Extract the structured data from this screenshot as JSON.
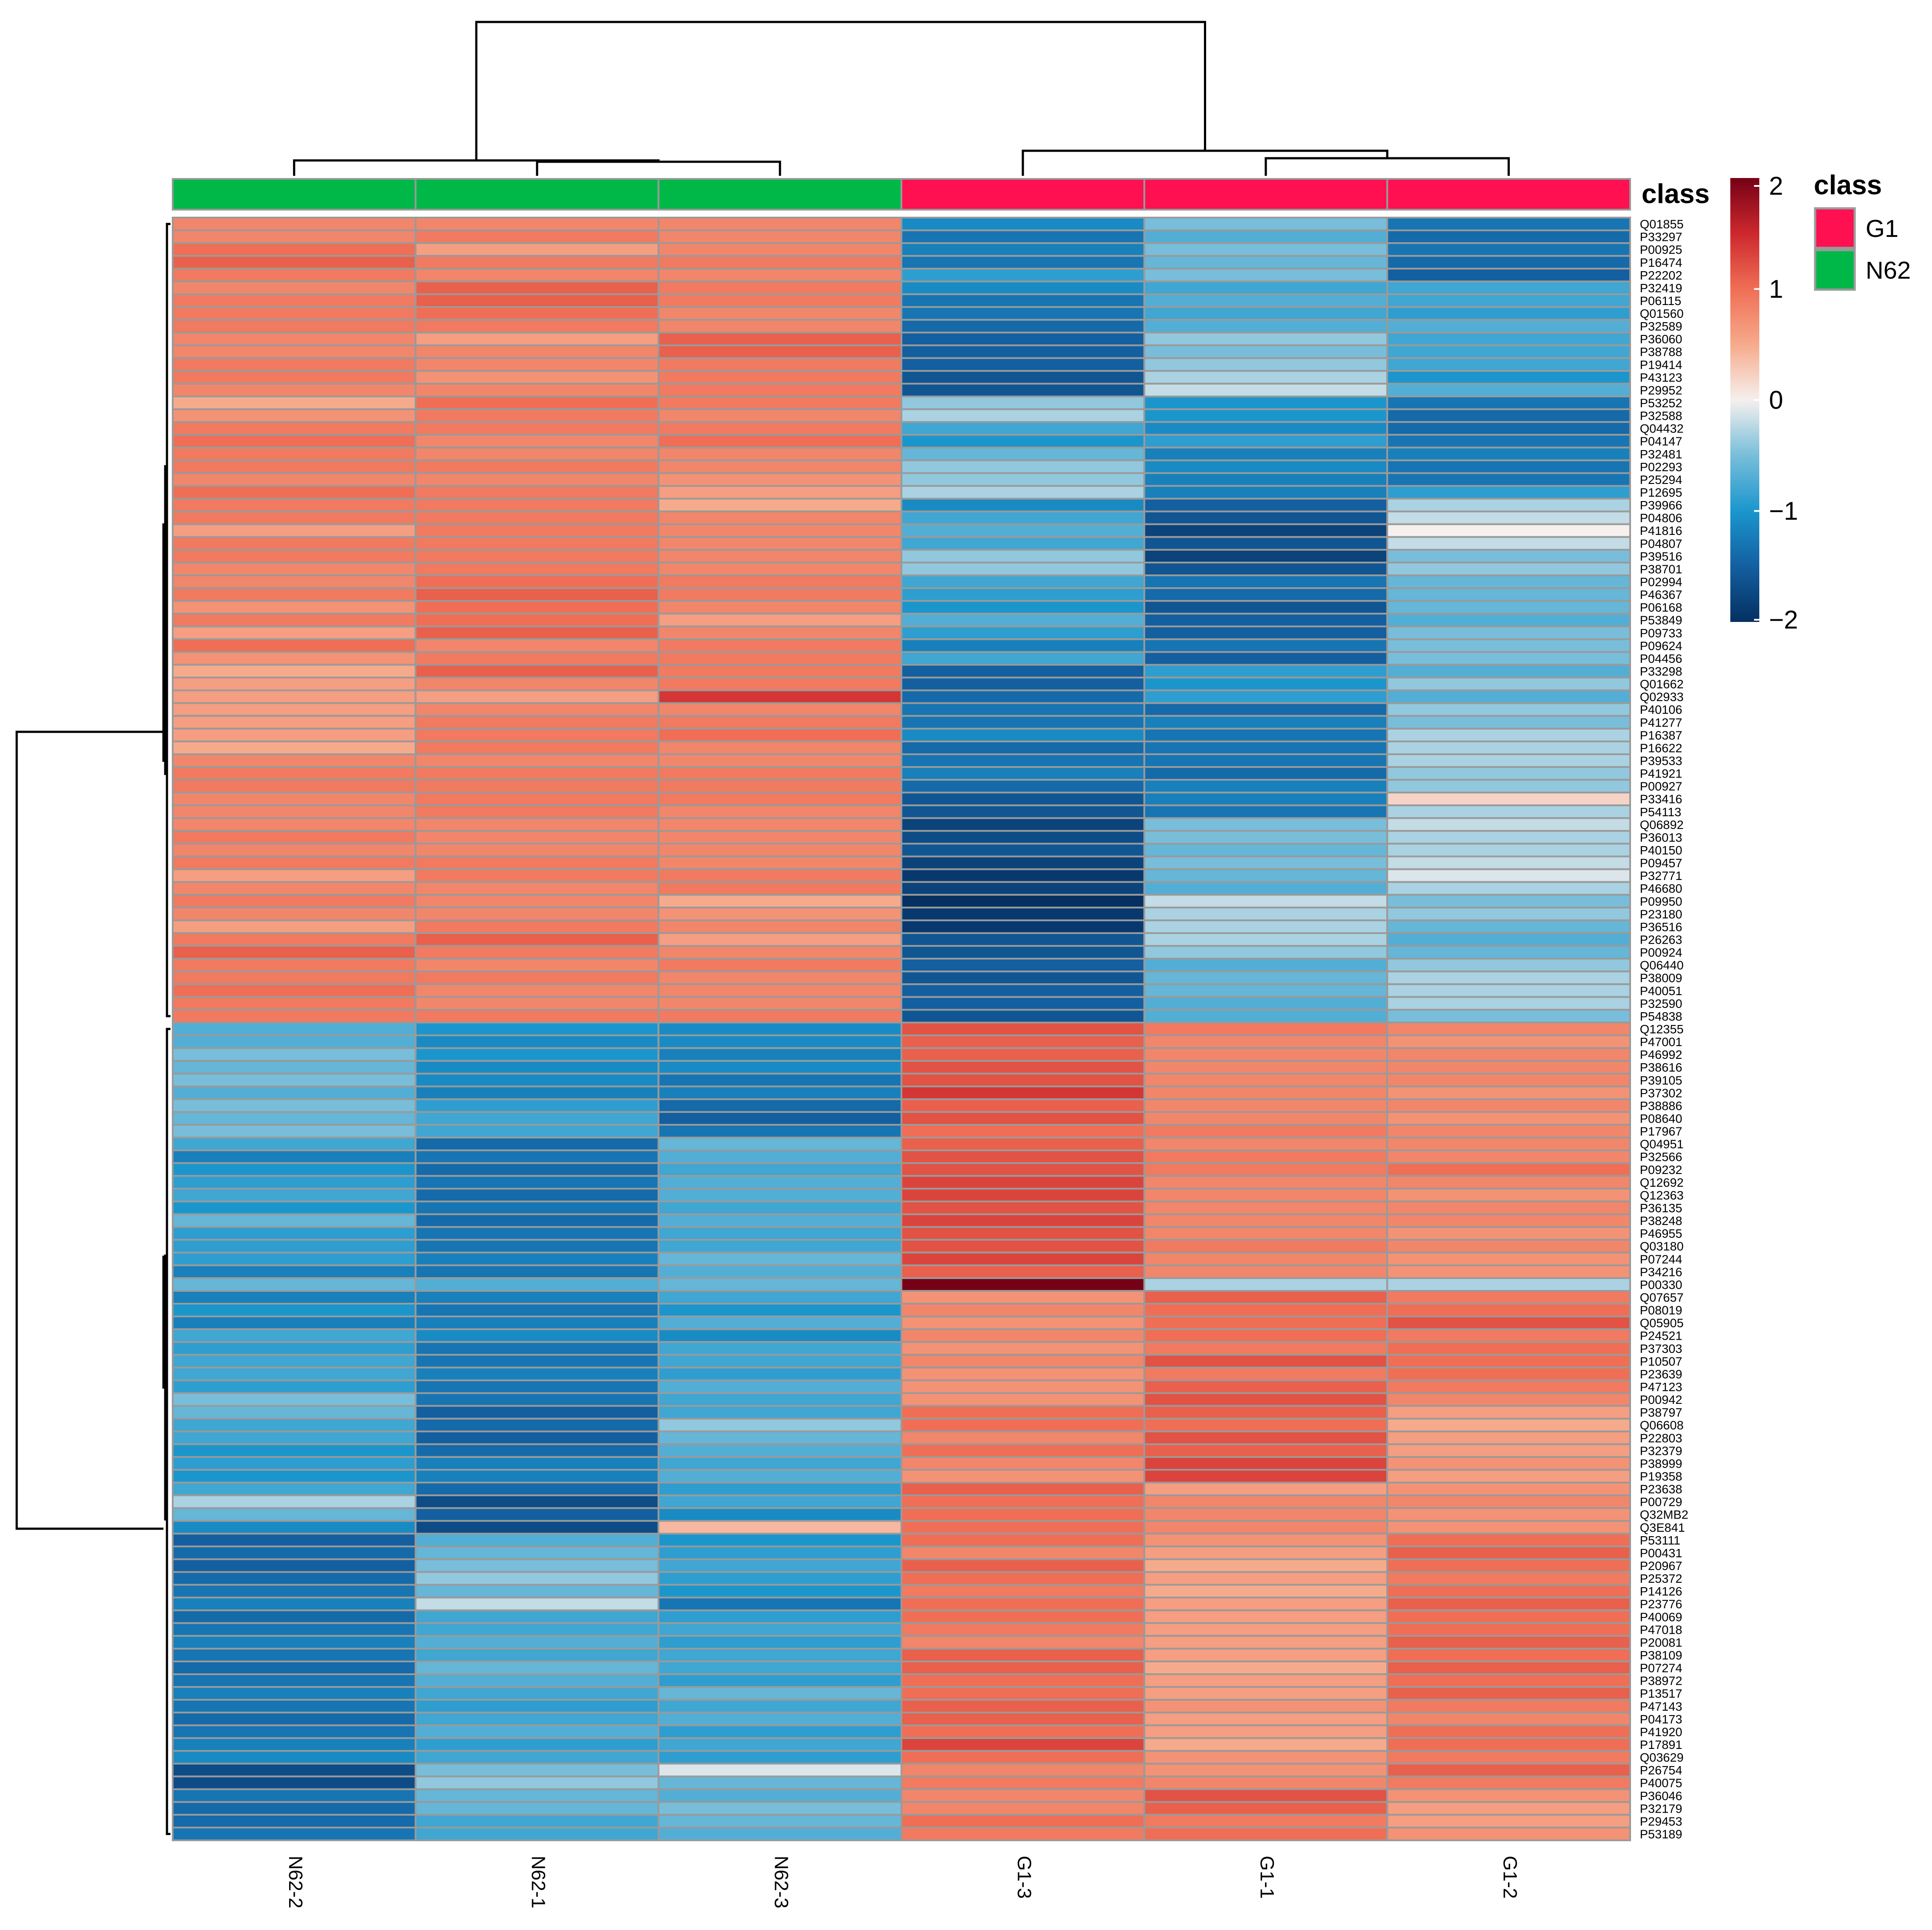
{
  "chart_data": {
    "type": "heatmap",
    "title": "",
    "columns": [
      "N62-2",
      "N62-1",
      "N62-3",
      "G1-3",
      "G1-1",
      "G1-2"
    ],
    "column_classes": [
      "N62",
      "N62",
      "N62",
      "G1",
      "G1",
      "G1"
    ],
    "annotation_label": "class",
    "legend": {
      "title": "class",
      "entries": [
        {
          "label": "G1",
          "color": "#ff1050"
        },
        {
          "label": "N62",
          "color": "#00b847"
        }
      ]
    },
    "colorbar": {
      "ticks": [
        "2",
        "1",
        "0",
        "−1",
        "−2"
      ],
      "range": [
        -2,
        2
      ]
    },
    "rows": [
      "Q01855",
      "P33297",
      "P00925",
      "P16474",
      "P22202",
      "P32419",
      "P06115",
      "Q01560",
      "P32589",
      "P36060",
      "P38788",
      "P19414",
      "P43123",
      "P29952",
      "P53252",
      "P32588",
      "Q04432",
      "P04147",
      "P32481",
      "P02293",
      "P25294",
      "P12695",
      "P39966",
      "P04806",
      "P41816",
      "P04807",
      "P39516",
      "P38701",
      "P02994",
      "P46367",
      "P06168",
      "P53849",
      "P09733",
      "P09624",
      "P04456",
      "P33298",
      "Q01662",
      "Q02933",
      "P40106",
      "P41277",
      "P16387",
      "P16622",
      "P39533",
      "P41921",
      "P00927",
      "P33416",
      "P54113",
      "Q06892",
      "P36013",
      "P40150",
      "P09457",
      "P32771",
      "P46680",
      "P09950",
      "P23180",
      "P36516",
      "P26263",
      "P00924",
      "Q06440",
      "P38009",
      "P40051",
      "P32590",
      "P54838",
      "Q12355",
      "P47001",
      "P46992",
      "P38616",
      "P39105",
      "P37302",
      "P38886",
      "P08640",
      "P17967",
      "Q04951",
      "P32566",
      "P09232",
      "Q12692",
      "Q12363",
      "P36135",
      "P38248",
      "P46955",
      "Q03180",
      "P07244",
      "P34216",
      "P00330",
      "Q07657",
      "P08019",
      "Q05905",
      "P24521",
      "P37303",
      "P10507",
      "P23639",
      "P47123",
      "P00942",
      "P38797",
      "Q06608",
      "P22803",
      "P32379",
      "P38999",
      "P19358",
      "P23638",
      "P00729",
      "Q32MB2",
      "Q3E841",
      "P53111",
      "P00431",
      "P20967",
      "P25372",
      "P14126",
      "P23776",
      "P40069",
      "P47018",
      "P20081",
      "P38109",
      "P07274",
      "P38972",
      "P13517",
      "P47143",
      "P04173",
      "P41920",
      "P17891",
      "Q03629",
      "P26754",
      "P40075",
      "P36046",
      "P32179",
      "P29453",
      "P53189"
    ],
    "values": [
      [
        0.8,
        0.8,
        0.8,
        -1.1,
        -0.5,
        -1.3
      ],
      [
        0.8,
        0.9,
        0.8,
        -1.3,
        -0.7,
        -1.4
      ],
      [
        1.0,
        0.6,
        0.8,
        -1.2,
        -0.5,
        -1.3
      ],
      [
        1.1,
        0.9,
        0.9,
        -1.3,
        -0.6,
        -1.4
      ],
      [
        0.9,
        0.8,
        0.8,
        -0.9,
        -0.5,
        -1.5
      ],
      [
        0.8,
        1.1,
        0.9,
        -1.1,
        -0.8,
        -0.8
      ],
      [
        0.9,
        1.1,
        0.9,
        -1.3,
        -0.7,
        -0.8
      ],
      [
        0.9,
        1.0,
        0.8,
        -1.3,
        -0.8,
        -0.9
      ],
      [
        0.9,
        0.9,
        0.8,
        -1.4,
        -0.7,
        -0.7
      ],
      [
        0.8,
        0.6,
        1.1,
        -1.5,
        -0.4,
        -0.8
      ],
      [
        0.8,
        0.8,
        1.1,
        -1.5,
        -0.5,
        -0.8
      ],
      [
        0.9,
        0.8,
        0.9,
        -1.5,
        -0.4,
        -0.8
      ],
      [
        0.9,
        0.7,
        0.9,
        -1.6,
        -0.3,
        -1.0
      ],
      [
        0.8,
        0.8,
        0.9,
        -1.6,
        -0.2,
        -0.7
      ],
      [
        0.5,
        1.0,
        0.9,
        -0.4,
        -1.0,
        -1.3
      ],
      [
        0.7,
        0.9,
        0.8,
        -0.3,
        -1.0,
        -1.4
      ],
      [
        0.9,
        0.9,
        0.9,
        -0.8,
        -1.1,
        -1.4
      ],
      [
        1.0,
        0.8,
        1.0,
        -1.0,
        -0.9,
        -1.3
      ],
      [
        0.9,
        0.8,
        0.8,
        -0.6,
        -1.2,
        -1.2
      ],
      [
        0.9,
        0.9,
        0.8,
        -0.4,
        -1.1,
        -1.3
      ],
      [
        0.8,
        0.8,
        0.7,
        -0.4,
        -1.2,
        -1.3
      ],
      [
        1.0,
        0.9,
        0.6,
        -0.3,
        -1.2,
        -0.9
      ],
      [
        0.9,
        0.9,
        0.5,
        -1.1,
        -1.5,
        -0.3
      ],
      [
        0.9,
        0.9,
        0.8,
        -0.8,
        -1.6,
        -0.2
      ],
      [
        0.6,
        0.9,
        0.8,
        -0.7,
        -1.8,
        0.0
      ],
      [
        0.9,
        0.9,
        0.8,
        -0.8,
        -1.6,
        -0.2
      ],
      [
        0.9,
        0.9,
        0.8,
        -0.4,
        -1.8,
        -0.5
      ],
      [
        0.8,
        0.9,
        0.8,
        -0.4,
        -1.6,
        -0.4
      ],
      [
        0.8,
        1.0,
        0.9,
        -0.8,
        -1.3,
        -0.6
      ],
      [
        0.9,
        1.1,
        0.9,
        -0.9,
        -1.4,
        -0.6
      ],
      [
        0.7,
        1.0,
        0.8,
        -1.0,
        -1.6,
        -0.6
      ],
      [
        0.9,
        1.0,
        0.6,
        -0.7,
        -1.5,
        -0.7
      ],
      [
        0.6,
        1.1,
        0.8,
        -0.9,
        -1.5,
        -0.5
      ],
      [
        1.0,
        0.8,
        0.9,
        -1.2,
        -1.3,
        -0.5
      ],
      [
        0.7,
        0.9,
        0.9,
        -0.8,
        -1.5,
        -0.5
      ],
      [
        0.5,
        1.1,
        0.9,
        -1.5,
        -0.9,
        -0.7
      ],
      [
        0.6,
        0.8,
        0.9,
        -1.5,
        -1.0,
        -0.4
      ],
      [
        0.6,
        0.6,
        1.4,
        -1.4,
        -0.9,
        -0.7
      ],
      [
        0.6,
        0.8,
        0.8,
        -1.3,
        -1.4,
        -0.4
      ],
      [
        0.6,
        0.9,
        0.9,
        -1.3,
        -1.2,
        -0.5
      ],
      [
        0.6,
        0.9,
        1.0,
        -1.1,
        -1.3,
        -0.3
      ],
      [
        0.5,
        0.9,
        0.8,
        -1.4,
        -1.3,
        -0.3
      ],
      [
        0.8,
        0.8,
        0.8,
        -1.3,
        -1.3,
        -0.3
      ],
      [
        0.9,
        0.9,
        0.9,
        -1.2,
        -1.4,
        -0.4
      ],
      [
        0.9,
        0.9,
        0.9,
        -1.4,
        -1.2,
        -0.4
      ],
      [
        0.8,
        0.9,
        0.9,
        -1.6,
        -1.2,
        0.2
      ],
      [
        0.8,
        0.9,
        0.8,
        -1.6,
        -1.3,
        -0.3
      ],
      [
        0.8,
        0.8,
        0.8,
        -1.8,
        -0.5,
        -0.2
      ],
      [
        0.9,
        0.8,
        0.8,
        -1.7,
        -0.5,
        -0.3
      ],
      [
        0.8,
        0.8,
        0.8,
        -1.6,
        -0.6,
        -0.3
      ],
      [
        0.9,
        0.9,
        0.8,
        -1.8,
        -0.5,
        -0.2
      ],
      [
        0.6,
        0.9,
        0.9,
        -1.9,
        -0.6,
        -0.1
      ],
      [
        0.8,
        0.8,
        0.9,
        -1.8,
        -0.7,
        -0.3
      ],
      [
        0.9,
        0.8,
        0.5,
        -2.0,
        -0.2,
        -0.5
      ],
      [
        0.8,
        0.8,
        0.7,
        -1.9,
        -0.3,
        -0.4
      ],
      [
        0.6,
        0.9,
        0.8,
        -1.9,
        -0.3,
        -0.6
      ],
      [
        0.9,
        1.1,
        0.6,
        -1.6,
        -0.3,
        -0.7
      ],
      [
        1.1,
        0.9,
        0.8,
        -1.6,
        -0.4,
        -0.6
      ],
      [
        0.9,
        0.8,
        0.9,
        -1.5,
        -0.7,
        -0.4
      ],
      [
        0.9,
        0.9,
        0.8,
        -1.6,
        -0.6,
        -0.3
      ],
      [
        1.0,
        0.8,
        0.8,
        -1.5,
        -0.6,
        -0.3
      ],
      [
        0.9,
        0.8,
        0.8,
        -1.5,
        -0.7,
        -0.3
      ],
      [
        0.9,
        0.9,
        0.9,
        -1.6,
        -0.7,
        -0.5
      ],
      [
        -0.7,
        -1.0,
        -1.1,
        1.2,
        0.9,
        0.8
      ],
      [
        -0.7,
        -1.1,
        -1.1,
        1.1,
        0.8,
        0.7
      ],
      [
        -0.5,
        -1.0,
        -1.2,
        1.1,
        0.8,
        0.8
      ],
      [
        -0.6,
        -1.1,
        -1.1,
        1.2,
        0.8,
        0.8
      ],
      [
        -0.5,
        -1.1,
        -1.3,
        1.2,
        0.8,
        0.8
      ],
      [
        -0.7,
        -1.2,
        -1.2,
        1.4,
        0.8,
        0.7
      ],
      [
        -0.5,
        -0.9,
        -1.4,
        1.1,
        0.8,
        0.8
      ],
      [
        -0.6,
        -0.8,
        -1.5,
        1.2,
        0.8,
        0.7
      ],
      [
        -0.5,
        -0.8,
        -1.3,
        1.0,
        0.9,
        0.8
      ],
      [
        -0.8,
        -1.4,
        -0.6,
        1.1,
        0.8,
        0.8
      ],
      [
        -1.2,
        -1.3,
        -0.7,
        1.2,
        0.9,
        0.8
      ],
      [
        -1.0,
        -1.4,
        -0.8,
        1.2,
        0.9,
        1.0
      ],
      [
        -0.9,
        -1.3,
        -0.7,
        1.3,
        0.8,
        0.8
      ],
      [
        -0.8,
        -1.4,
        -0.7,
        1.3,
        0.8,
        0.7
      ],
      [
        -1.0,
        -1.3,
        -0.8,
        1.2,
        0.8,
        0.8
      ],
      [
        -0.6,
        -1.4,
        -0.7,
        1.3,
        0.8,
        0.8
      ],
      [
        -0.9,
        -1.3,
        -0.8,
        1.2,
        0.8,
        0.7
      ],
      [
        -0.9,
        -1.3,
        -0.8,
        1.2,
        0.9,
        0.8
      ],
      [
        -0.9,
        -1.2,
        -0.6,
        1.3,
        0.8,
        0.7
      ],
      [
        -1.2,
        -1.3,
        -0.7,
        1.1,
        0.8,
        0.7
      ],
      [
        -0.6,
        -0.7,
        -0.6,
        2.0,
        -0.3,
        -0.3
      ],
      [
        -1.2,
        -1.2,
        -0.8,
        0.7,
        1.1,
        0.9
      ],
      [
        -1.0,
        -1.3,
        -1.0,
        0.8,
        1.0,
        1.0
      ],
      [
        -1.2,
        -1.2,
        -0.7,
        0.7,
        1.0,
        1.2
      ],
      [
        -0.8,
        -1.1,
        -1.1,
        0.8,
        1.0,
        0.9
      ],
      [
        -0.9,
        -1.3,
        -0.8,
        0.7,
        0.9,
        1.0
      ],
      [
        -0.8,
        -1.3,
        -0.8,
        0.8,
        1.2,
        1.0
      ],
      [
        -0.8,
        -1.2,
        -0.9,
        0.7,
        0.9,
        1.0
      ],
      [
        -0.9,
        -1.3,
        -0.7,
        0.7,
        1.1,
        0.9
      ],
      [
        -0.5,
        -1.3,
        -0.8,
        0.7,
        1.2,
        0.8
      ],
      [
        -0.6,
        -1.5,
        -0.8,
        1.0,
        1.1,
        0.6
      ],
      [
        -0.8,
        -1.4,
        -0.4,
        1.0,
        1.0,
        0.5
      ],
      [
        -0.8,
        -1.5,
        -0.6,
        0.8,
        1.2,
        0.6
      ],
      [
        -1.0,
        -1.4,
        -0.7,
        1.0,
        1.1,
        0.6
      ],
      [
        -0.9,
        -1.2,
        -0.8,
        0.8,
        1.3,
        0.7
      ],
      [
        -1.0,
        -1.2,
        -0.7,
        0.7,
        1.3,
        0.6
      ],
      [
        -0.8,
        -1.4,
        -0.9,
        1.1,
        0.6,
        0.7
      ],
      [
        -0.3,
        -1.7,
        -0.8,
        1.0,
        0.8,
        0.8
      ],
      [
        -0.6,
        -1.5,
        -1.1,
        1.0,
        0.8,
        0.7
      ],
      [
        -1.1,
        -1.7,
        0.4,
        1.0,
        0.8,
        0.7
      ],
      [
        -1.5,
        -0.7,
        -1.0,
        1.0,
        0.7,
        1.0
      ],
      [
        -1.4,
        -0.6,
        -0.9,
        0.8,
        0.6,
        1.1
      ],
      [
        -1.5,
        -0.5,
        -0.8,
        1.1,
        0.5,
        1.0
      ],
      [
        -1.4,
        -0.4,
        -0.9,
        1.0,
        0.6,
        0.9
      ],
      [
        -1.3,
        -0.6,
        -1.0,
        0.9,
        0.5,
        1.0
      ],
      [
        -1.2,
        -0.2,
        -1.3,
        1.0,
        0.6,
        1.1
      ],
      [
        -1.4,
        -0.8,
        -0.9,
        1.0,
        0.6,
        1.0
      ],
      [
        -1.3,
        -0.8,
        -0.8,
        0.9,
        0.6,
        1.0
      ],
      [
        -1.2,
        -0.7,
        -0.9,
        0.8,
        0.6,
        1.1
      ],
      [
        -1.3,
        -0.8,
        -0.8,
        1.1,
        0.6,
        1.0
      ],
      [
        -1.4,
        -0.6,
        -0.8,
        1.1,
        0.5,
        1.1
      ],
      [
        -1.3,
        -0.7,
        -0.9,
        1.0,
        0.6,
        1.0
      ],
      [
        -1.2,
        -0.8,
        -0.6,
        1.0,
        0.6,
        1.1
      ],
      [
        -1.3,
        -0.9,
        -0.8,
        1.1,
        0.7,
        0.9
      ],
      [
        -1.4,
        -0.8,
        -0.7,
        1.1,
        0.6,
        0.8
      ],
      [
        -1.3,
        -0.7,
        -0.9,
        1.0,
        0.6,
        1.0
      ],
      [
        -1.2,
        -0.9,
        -0.8,
        1.3,
        0.5,
        1.0
      ],
      [
        -1.1,
        -0.8,
        -0.9,
        1.0,
        0.7,
        0.9
      ],
      [
        -1.7,
        -0.5,
        -0.1,
        0.8,
        0.7,
        1.1
      ],
      [
        -1.7,
        -0.4,
        -0.6,
        0.9,
        0.8,
        0.9
      ],
      [
        -1.3,
        -0.6,
        -0.7,
        0.8,
        1.2,
        0.7
      ],
      [
        -1.4,
        -0.6,
        -0.5,
        0.8,
        1.1,
        0.6
      ],
      [
        -1.4,
        -0.8,
        -0.6,
        1.0,
        0.9,
        0.6
      ],
      [
        -1.3,
        -0.8,
        -0.7,
        0.9,
        1.0,
        0.7
      ]
    ]
  }
}
